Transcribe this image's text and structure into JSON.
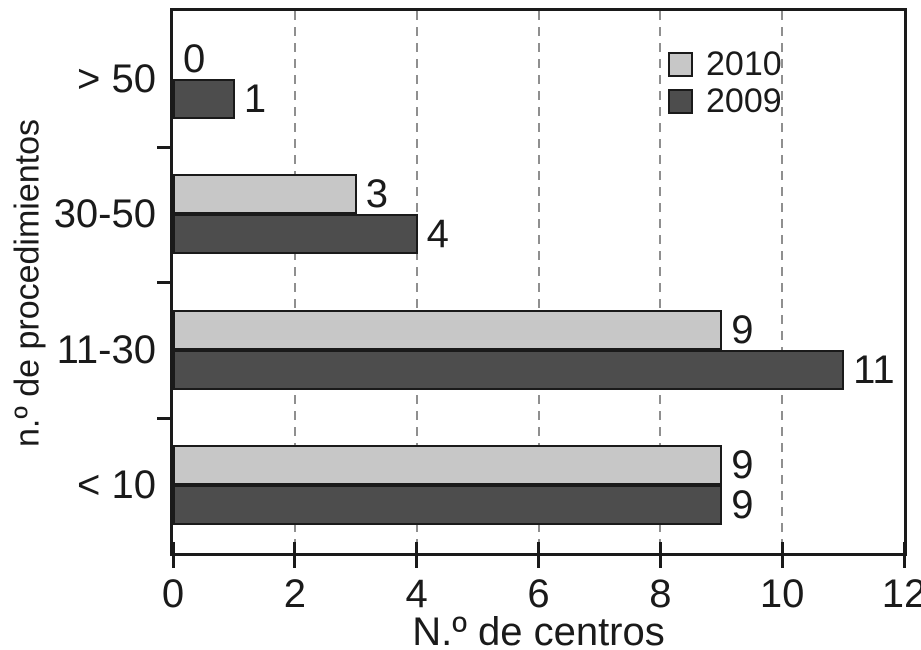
{
  "colors": {
    "bar_2010": "#c7c7c7",
    "bar_2009": "#4d4d4d",
    "axis": "#1a1a1a",
    "gridline": "#8f8f8f",
    "text": "#1a1a1a",
    "background": "#ffffff"
  },
  "chart_data": {
    "type": "bar",
    "orientation": "horizontal",
    "categories": [
      "> 50",
      "30-50",
      "11-30",
      "< 10"
    ],
    "series": [
      {
        "name": "2010",
        "color": "#c7c7c7",
        "values": [
          0,
          3,
          9,
          9
        ]
      },
      {
        "name": "2009",
        "color": "#4d4d4d",
        "values": [
          1,
          4,
          11,
          9
        ]
      }
    ],
    "xlabel": "N.º de centros",
    "ylabel": "n.º de procedimientos",
    "xlim": [
      0,
      12
    ],
    "xticks": [
      0,
      2,
      4,
      6,
      8,
      10,
      12
    ],
    "gridline_values": [
      2,
      4,
      6,
      8,
      10
    ],
    "grid_style": "dashed-vertical",
    "data_labels": true,
    "legend_position": "top-right"
  }
}
